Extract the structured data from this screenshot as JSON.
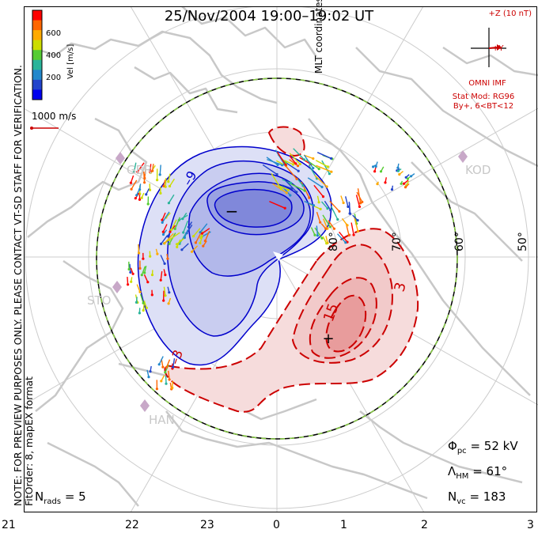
{
  "title": "25/Nov/2004  19:00–19:02  UT",
  "note_lines": [
    "NOTE: FOR PREVIEW PURPOSES ONLY. PLEASE CONTACT VT-SD STAFF FOR VERIFICATION.",
    "FitOrder: 8, mapEX format"
  ],
  "coords_label": "MLT coordinates",
  "colorbar": {
    "unit": "Vel [m/s]",
    "ticks": [
      "600",
      "400",
      "200"
    ],
    "colors": [
      "#ff0000",
      "#ff6600",
      "#ffaa00",
      "#ccdd00",
      "#55cc33",
      "#2ab49a",
      "#2288cc",
      "#2244cc",
      "#0000ee"
    ]
  },
  "ref_vector": "1000 m/s",
  "imf": {
    "bz_label": "+Z (10 nT)",
    "by_label": "+Y",
    "source": "OMNI IMF",
    "model": "Stat Mod: RG96",
    "condition": "By+, 6<BT<12"
  },
  "stats": {
    "phi_pc": "= 52 kV",
    "lambda_hm": "= 61°",
    "n_vc": "= 183",
    "n_rads": "= 5"
  },
  "mlt_ticks": [
    "21",
    "22",
    "23",
    "0",
    "1",
    "2",
    "3"
  ],
  "lat_labels": [
    "80°",
    "70°",
    "60°",
    "50°"
  ],
  "stations": [
    "GBR",
    "KOD",
    "STO",
    "HAN"
  ],
  "contours": {
    "neg_labels": [
      "–9"
    ],
    "pos_labels": [
      "3",
      "15",
      "–3"
    ],
    "min_marker": "−",
    "max_marker": "+"
  },
  "colors": {
    "negative": "#0000cc",
    "positive": "#cc0000",
    "coast": "#c8c8c8",
    "grid": "#cccccc",
    "boundary_dash": "#88cc44"
  }
}
